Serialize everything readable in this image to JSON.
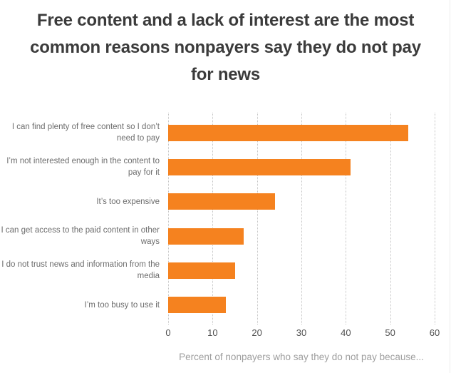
{
  "title": {
    "text": "Free content and a lack of interest are the most common reasons nonpayers say they do not pay for news"
  },
  "chart_data": {
    "type": "bar",
    "orientation": "horizontal",
    "title": "Free content and a lack of interest are the most common reasons nonpayers say they do not pay for news",
    "categories": [
      "I can find plenty of free content so I don’t need to pay",
      "I’m not interested enough in the content to pay for it",
      "It’s too expensive",
      "I can get access to the paid content in other ways",
      "I do not trust news and information from the media",
      "I’m too busy to use it"
    ],
    "values": [
      54,
      41,
      24,
      17,
      15,
      13
    ],
    "xlabel": "Percent of nonpayers who say they do not pay because...",
    "ylabel": "",
    "xlim": [
      0,
      60
    ],
    "xticks": [
      0,
      10,
      20,
      30,
      40,
      50,
      60
    ],
    "grid": "vertical-dotted",
    "legend": "none"
  },
  "colors": {
    "bar": "#F5821F",
    "title_text": "#3b3b3b",
    "category_label": "#6d6d6d",
    "tick_label": "#4f4f4f",
    "caption": "#9e9e9e",
    "gridline": "#c4c4c4",
    "right_edge": "#ececec"
  }
}
